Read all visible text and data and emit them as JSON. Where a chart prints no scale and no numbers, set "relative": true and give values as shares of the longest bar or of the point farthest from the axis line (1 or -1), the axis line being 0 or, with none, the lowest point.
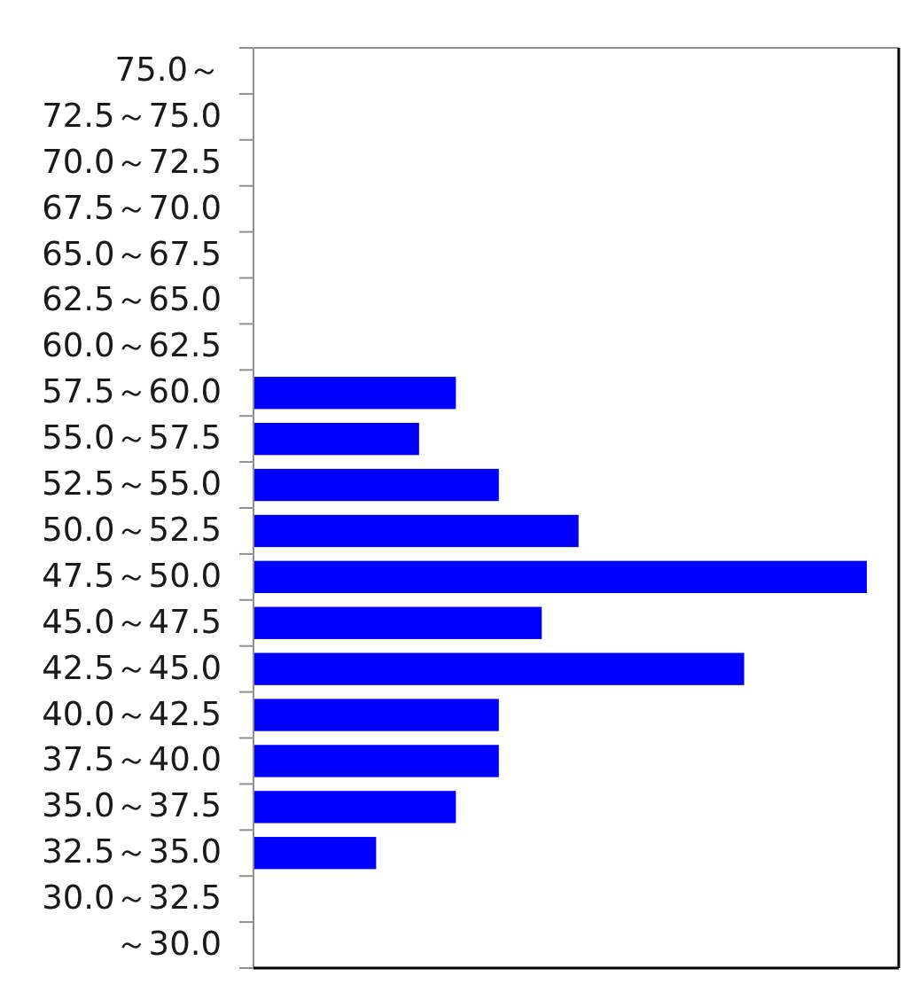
{
  "chart_data": {
    "type": "bar",
    "orientation": "horizontal",
    "relative": true,
    "color": "#0000ff",
    "categories": [
      "75.0～",
      "72.5～75.0",
      "70.0～72.5",
      "67.5～70.0",
      "65.0～67.5",
      "62.5～65.0",
      "60.0～62.5",
      "57.5～60.0",
      "55.0～57.5",
      "52.5～55.0",
      "50.0～52.5",
      "47.5～50.0",
      "45.0～47.5",
      "42.5～45.0",
      "40.0～42.5",
      "37.5～40.0",
      "35.0～37.5",
      "32.5～35.0",
      "30.0～32.5",
      "～30.0"
    ],
    "values": [
      0,
      0,
      0,
      0,
      0,
      0,
      0,
      0.33,
      0.27,
      0.4,
      0.53,
      1,
      0.47,
      0.8,
      0.4,
      0.4,
      0.33,
      0.2,
      0,
      0
    ]
  }
}
